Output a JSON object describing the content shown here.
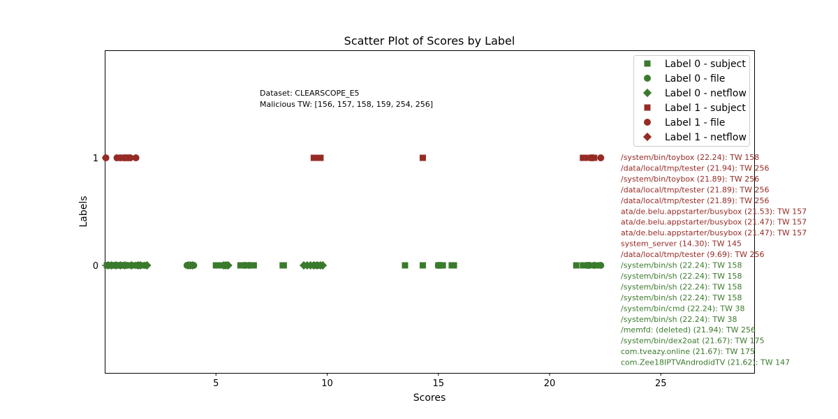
{
  "chart_data": {
    "type": "scatter",
    "title": "Scatter Plot of Scores by Label",
    "xlabel": "Scores",
    "ylabel": "Labels",
    "xlim": [
      0,
      29.2
    ],
    "ylim": [
      -1,
      2
    ],
    "xticks": [
      5,
      10,
      15,
      20,
      25
    ],
    "xtick_labels": [
      "5",
      "10",
      "15",
      "20",
      "25"
    ],
    "yticks": [
      0,
      1
    ],
    "ytick_labels": [
      "0",
      "1"
    ],
    "grid": false,
    "legend_position": "top-right",
    "colors": {
      "label0": "#3a7a2c",
      "label1": "#962b26"
    },
    "series": [
      {
        "name": "Label 0 - subject",
        "label": 0,
        "marker": "square",
        "color": "#3a7a2c",
        "x": [
          0.1,
          0.3,
          0.5,
          0.7,
          0.9,
          1.1,
          1.3,
          1.5,
          1.7,
          5.0,
          5.1,
          5.3,
          6.1,
          6.3,
          6.5,
          6.7,
          8.0,
          8.05,
          9.5,
          9.7,
          13.5,
          14.3,
          15.0,
          15.2,
          15.6,
          15.7,
          21.2,
          21.5,
          21.7,
          22.2
        ]
      },
      {
        "name": "Label 0 - file",
        "label": 0,
        "marker": "circle",
        "color": "#3a7a2c",
        "x": [
          0.1,
          0.2,
          0.4,
          0.6,
          0.8,
          1.0,
          1.2,
          1.4,
          1.6,
          1.8,
          3.7,
          3.8,
          3.9,
          4.0,
          5.4,
          5.5,
          6.3,
          6.5,
          9.4,
          9.5,
          9.6,
          15.0,
          15.1,
          21.7,
          21.8,
          22.0,
          22.3
        ]
      },
      {
        "name": "Label 0 - netflow",
        "label": 0,
        "marker": "diamond",
        "color": "#3a7a2c",
        "x": [
          0.15,
          0.3,
          0.5,
          0.7,
          0.9,
          1.2,
          1.5,
          1.6,
          1.9,
          3.75,
          3.85,
          3.95,
          5.35,
          5.45,
          5.55,
          8.95,
          9.1,
          9.25,
          9.4,
          9.55,
          9.7,
          9.8
        ]
      },
      {
        "name": "Label 1 - subject",
        "label": 1,
        "marker": "square",
        "color": "#962b26",
        "x": [
          0.6,
          0.8,
          1.0,
          9.4,
          9.5,
          9.6,
          9.7,
          14.3,
          21.5,
          21.6,
          21.9,
          22.0
        ]
      },
      {
        "name": "Label 1 - file",
        "label": 1,
        "marker": "circle",
        "color": "#962b26",
        "x": [
          0.05,
          0.55,
          0.7,
          0.85,
          0.95,
          1.05,
          1.15,
          1.4,
          21.85,
          21.95,
          22.3
        ]
      },
      {
        "name": "Label 1 - netflow",
        "label": 1,
        "marker": "diamond",
        "color": "#962b26",
        "x": []
      }
    ],
    "annotation": {
      "lines": [
        "Dataset: CLEARSCOPE_E5",
        "Malicious TW: [156, 157, 158, 159, 254, 256]"
      ]
    },
    "side_labels": [
      {
        "text": "/system/bin/toybox (22.24): TW 158",
        "color": "#962b26"
      },
      {
        "text": "/data/local/tmp/tester (21.94): TW 256",
        "color": "#962b26"
      },
      {
        "text": "/system/bin/toybox (21.89): TW 256",
        "color": "#962b26"
      },
      {
        "text": "/data/local/tmp/tester (21.89): TW 256",
        "color": "#962b26"
      },
      {
        "text": "/data/local/tmp/tester (21.89): TW 256",
        "color": "#962b26"
      },
      {
        "text": "ata/de.belu.appstarter/busybox (21.53): TW 157",
        "color": "#962b26"
      },
      {
        "text": "ata/de.belu.appstarter/busybox (21.47): TW 157",
        "color": "#962b26"
      },
      {
        "text": "ata/de.belu.appstarter/busybox (21.47): TW 157",
        "color": "#962b26"
      },
      {
        "text": "system_server (14.30): TW 145",
        "color": "#962b26"
      },
      {
        "text": "/data/local/tmp/tester (9.69): TW 256",
        "color": "#962b26"
      },
      {
        "text": "/system/bin/sh (22.24): TW 158",
        "color": "#3a7a2c"
      },
      {
        "text": "/system/bin/sh (22.24): TW 158",
        "color": "#3a7a2c"
      },
      {
        "text": "/system/bin/sh (22.24): TW 158",
        "color": "#3a7a2c"
      },
      {
        "text": "/system/bin/sh (22.24): TW 158",
        "color": "#3a7a2c"
      },
      {
        "text": "/system/bin/cmd (22.24): TW 38",
        "color": "#3a7a2c"
      },
      {
        "text": "/system/bin/sh (22.24): TW 38",
        "color": "#3a7a2c"
      },
      {
        "text": "/memfd: (deleted) (21.94): TW 256",
        "color": "#3a7a2c"
      },
      {
        "text": "/system/bin/dex2oat (21.67): TW 175",
        "color": "#3a7a2c"
      },
      {
        "text": "com.tveazy.online (21.67): TW 175",
        "color": "#3a7a2c"
      },
      {
        "text": "com.Zee18IPTVAndrodidTV (21.62): TW 147",
        "color": "#3a7a2c"
      }
    ]
  }
}
